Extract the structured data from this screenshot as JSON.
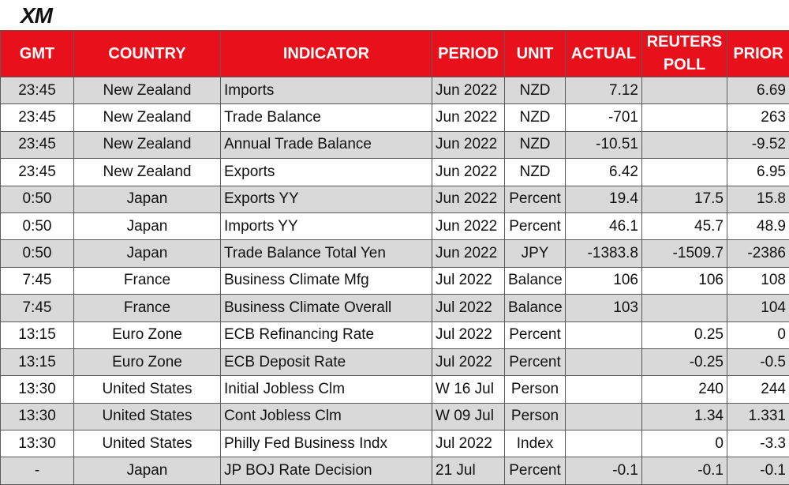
{
  "brand": {
    "logo": "XM"
  },
  "table": {
    "headers": {
      "gmt": "GMT",
      "country": "COUNTRY",
      "indicator": "INDICATOR",
      "period": "PERIOD",
      "unit": "UNIT",
      "actual": "ACTUAL",
      "poll": "REUTERS POLL",
      "prior": "PRIOR"
    },
    "rows": [
      {
        "gmt": "23:45",
        "country": "New Zealand",
        "indicator": "Imports",
        "period": "Jun 2022",
        "unit": "NZD",
        "actual": "7.12",
        "poll": "",
        "prior": "6.69"
      },
      {
        "gmt": "23:45",
        "country": "New Zealand",
        "indicator": "Trade Balance",
        "period": "Jun 2022",
        "unit": "NZD",
        "actual": "-701",
        "poll": "",
        "prior": "263"
      },
      {
        "gmt": "23:45",
        "country": "New Zealand",
        "indicator": "Annual Trade Balance",
        "period": "Jun 2022",
        "unit": "NZD",
        "actual": "-10.51",
        "poll": "",
        "prior": "-9.52"
      },
      {
        "gmt": "23:45",
        "country": "New Zealand",
        "indicator": "Exports",
        "period": "Jun 2022",
        "unit": "NZD",
        "actual": "6.42",
        "poll": "",
        "prior": "6.95"
      },
      {
        "gmt": "0:50",
        "country": "Japan",
        "indicator": "Exports YY",
        "period": "Jun 2022",
        "unit": "Percent",
        "actual": "19.4",
        "poll": "17.5",
        "prior": "15.8"
      },
      {
        "gmt": "0:50",
        "country": "Japan",
        "indicator": "Imports YY",
        "period": "Jun 2022",
        "unit": "Percent",
        "actual": "46.1",
        "poll": "45.7",
        "prior": "48.9"
      },
      {
        "gmt": "0:50",
        "country": "Japan",
        "indicator": "Trade Balance Total Yen",
        "period": "Jun 2022",
        "unit": "JPY",
        "actual": "-1383.8",
        "poll": "-1509.7",
        "prior": "-2386"
      },
      {
        "gmt": "7:45",
        "country": "France",
        "indicator": "Business Climate Mfg",
        "period": "Jul 2022",
        "unit": "Balance",
        "actual": "106",
        "poll": "106",
        "prior": "108"
      },
      {
        "gmt": "7:45",
        "country": "France",
        "indicator": "Business Climate Overall",
        "period": "Jul 2022",
        "unit": "Balance",
        "actual": "103",
        "poll": "",
        "prior": "104"
      },
      {
        "gmt": "13:15",
        "country": "Euro Zone",
        "indicator": "ECB Refinancing Rate",
        "period": "Jul 2022",
        "unit": "Percent",
        "actual": "",
        "poll": "0.25",
        "prior": "0"
      },
      {
        "gmt": "13:15",
        "country": "Euro Zone",
        "indicator": "ECB Deposit Rate",
        "period": "Jul 2022",
        "unit": "Percent",
        "actual": "",
        "poll": "-0.25",
        "prior": "-0.5"
      },
      {
        "gmt": "13:30",
        "country": "United States",
        "indicator": "Initial Jobless Clm",
        "period": "W 16 Jul",
        "unit": "Person",
        "actual": "",
        "poll": "240",
        "prior": "244"
      },
      {
        "gmt": "13:30",
        "country": "United States",
        "indicator": "Cont Jobless Clm",
        "period": "W 09 Jul",
        "unit": "Person",
        "actual": "",
        "poll": "1.34",
        "prior": "1.331"
      },
      {
        "gmt": "13:30",
        "country": "United States",
        "indicator": "Philly Fed Business Indx",
        "period": "Jul 2022",
        "unit": "Index",
        "actual": "",
        "poll": "0",
        "prior": "-3.3"
      },
      {
        "gmt": "-",
        "country": "Japan",
        "indicator": "JP BOJ Rate Decision",
        "period": "21 Jul",
        "unit": "Percent",
        "actual": "-0.1",
        "poll": "-0.1",
        "prior": "-0.1"
      }
    ]
  }
}
